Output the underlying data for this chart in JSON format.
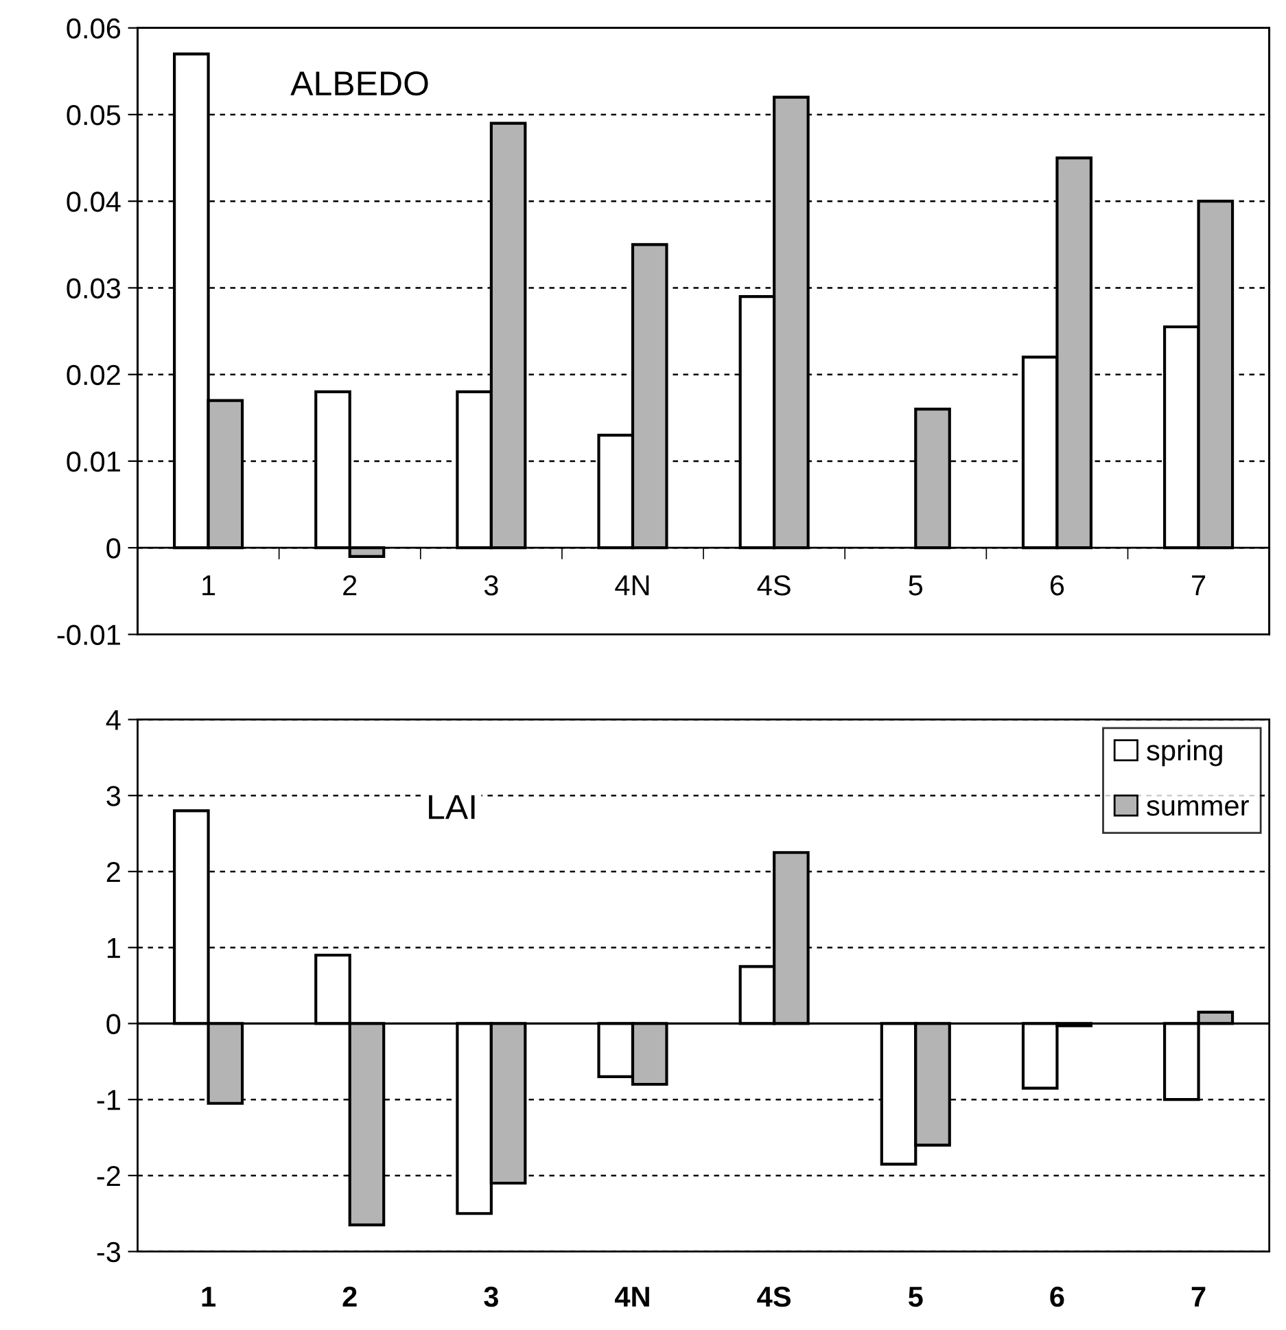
{
  "chart_data": [
    {
      "type": "bar",
      "title": "ALBEDO",
      "categories": [
        "1",
        "2",
        "3",
        "4N",
        "4S",
        "5",
        "6",
        "7"
      ],
      "series": [
        {
          "color": "#ffffff",
          "values": [
            0.057,
            0.018,
            0.018,
            0.013,
            0.029,
            null,
            0.022,
            0.0255
          ]
        },
        {
          "color": "#b4b4b4",
          "values": [
            0.017,
            -0.001,
            0.049,
            0.035,
            0.052,
            0.016,
            0.045,
            0.04
          ]
        }
      ],
      "ylim": [
        -0.01,
        0.06
      ],
      "yticks": [
        -0.01,
        0,
        0.01,
        0.02,
        0.03,
        0.04,
        0.05,
        0.06
      ],
      "grid": "y",
      "legend": false
    },
    {
      "type": "bar",
      "title": "LAI",
      "categories": [
        "1",
        "2",
        "3",
        "4N",
        "4S",
        "5",
        "6",
        "7"
      ],
      "series": [
        {
          "name": "spring",
          "color": "#ffffff",
          "values": [
            2.8,
            0.9,
            -2.5,
            -0.7,
            0.75,
            -1.85,
            -0.85,
            -1.0
          ]
        },
        {
          "name": "summer",
          "color": "#b4b4b4",
          "values": [
            -1.05,
            -2.65,
            -2.1,
            -0.8,
            2.25,
            -1.6,
            -0.03,
            0.15
          ]
        }
      ],
      "ylim": [
        -3,
        4
      ],
      "yticks": [
        -3,
        -2,
        -1,
        0,
        1,
        2,
        3,
        4
      ],
      "grid": "y",
      "legend": "upper right"
    }
  ]
}
